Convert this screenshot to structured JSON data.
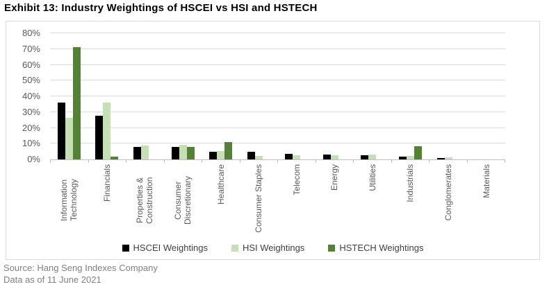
{
  "title": "Exhibit 13: Industry Weightings of HSCEI vs HSI and HSTECH",
  "source": {
    "line1": "Source: Hang Seng Indexes Company",
    "line2": "Data as of 11 June 2021"
  },
  "colors": {
    "hscei": "#000000",
    "hsi": "#c5e0b4",
    "hstech": "#548235",
    "gridline": "#d9d9d9",
    "axis_line": "#bfbfbf",
    "axis_text": "#595959",
    "legend_text": "#404040",
    "source_text": "#808080",
    "chart_border": "#d9d9d9"
  },
  "chart_data": {
    "type": "bar",
    "title": "",
    "xlabel": "",
    "ylabel": "",
    "ylim": [
      0,
      80
    ],
    "grid": true,
    "legend_position": "bottom",
    "ytick_values": [
      0,
      10,
      20,
      30,
      40,
      50,
      60,
      70,
      80
    ],
    "ytick_labels": [
      "0%",
      "10%",
      "20%",
      "30%",
      "40%",
      "50%",
      "60%",
      "70%",
      "80%"
    ],
    "categories": [
      "Information Technology",
      "Financials",
      "Properties & Construction",
      "Consumer Discretionary",
      "Healthcare",
      "Consumer Staples",
      "Telecom",
      "Energy",
      "Utilities",
      "Industrials",
      "Conglomerates",
      "Materials"
    ],
    "series": [
      {
        "key": "hscei",
        "name": "HSCEI Weightings",
        "color": "#000000",
        "values": [
          36.0,
          27.5,
          7.8,
          7.9,
          5.0,
          4.9,
          3.6,
          3.1,
          2.6,
          1.7,
          0.7,
          0
        ]
      },
      {
        "key": "hsi",
        "name": "HSI Weightings",
        "color": "#c5e0b4",
        "values": [
          26.5,
          36.2,
          8.7,
          9.2,
          5.5,
          2.1,
          2.6,
          2.6,
          3.1,
          2.2,
          1.5,
          0
        ]
      },
      {
        "key": "hstech",
        "name": "HSTECH Weightings",
        "color": "#548235",
        "values": [
          71.2,
          1.8,
          0,
          7.8,
          11.2,
          0,
          0,
          0,
          0,
          8.4,
          0,
          0
        ]
      }
    ]
  }
}
